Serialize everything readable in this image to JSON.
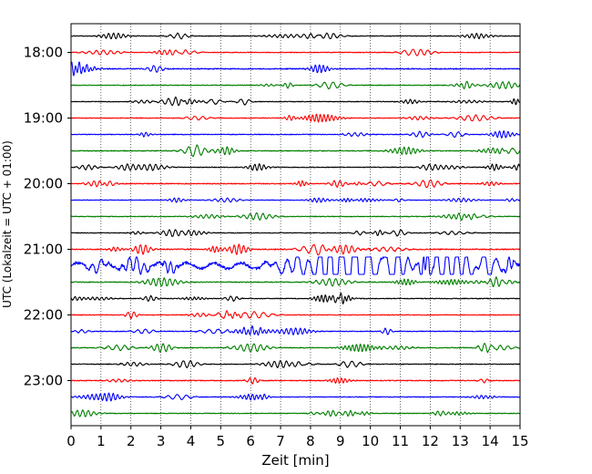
{
  "chart_data": {
    "type": "line",
    "subtype": "helicorder",
    "xlabel": "Zeit  [min]",
    "ylabel": "UTC (Lokalzeit = UTC + 01:00)",
    "xlim": [
      0,
      15
    ],
    "xticks": [
      "0",
      "1",
      "2",
      "3",
      "4",
      "5",
      "6",
      "7",
      "8",
      "9",
      "10",
      "11",
      "12",
      "13",
      "14",
      "15"
    ],
    "yticks": [
      "18:00",
      "19:00",
      "20:00",
      "21:00",
      "22:00",
      "23:00"
    ],
    "grid": {
      "x": true,
      "style": "dotted"
    },
    "trace_colors": [
      "#000000",
      "#ff0000",
      "#0000ff",
      "#008000"
    ],
    "traces": [
      {
        "start": "17:45",
        "amplitude": 0.25
      },
      {
        "start": "18:00",
        "amplitude": 0.25
      },
      {
        "start": "18:15",
        "amplitude": 0.35
      },
      {
        "start": "18:30",
        "amplitude": 0.25
      },
      {
        "start": "18:45",
        "amplitude": 0.25
      },
      {
        "start": "19:00",
        "amplitude": 0.25
      },
      {
        "start": "19:15",
        "amplitude": 0.25
      },
      {
        "start": "19:30",
        "amplitude": 0.3
      },
      {
        "start": "19:45",
        "amplitude": 0.25
      },
      {
        "start": "20:00",
        "amplitude": 0.3
      },
      {
        "start": "20:15",
        "amplitude": 0.2
      },
      {
        "start": "20:30",
        "amplitude": 0.25
      },
      {
        "start": "20:45",
        "amplitude": 0.25
      },
      {
        "start": "21:00",
        "amplitude": 0.35
      },
      {
        "start": "21:15",
        "amplitude": 1.0
      },
      {
        "start": "21:30",
        "amplitude": 0.3
      },
      {
        "start": "21:45",
        "amplitude": 0.25
      },
      {
        "start": "22:00",
        "amplitude": 0.25
      },
      {
        "start": "22:15",
        "amplitude": 0.25
      },
      {
        "start": "22:30",
        "amplitude": 0.3
      },
      {
        "start": "22:45",
        "amplitude": 0.25
      },
      {
        "start": "23:00",
        "amplitude": 0.3
      },
      {
        "start": "23:15",
        "amplitude": 0.25
      },
      {
        "start": "23:30",
        "amplitude": 0.25
      }
    ]
  }
}
